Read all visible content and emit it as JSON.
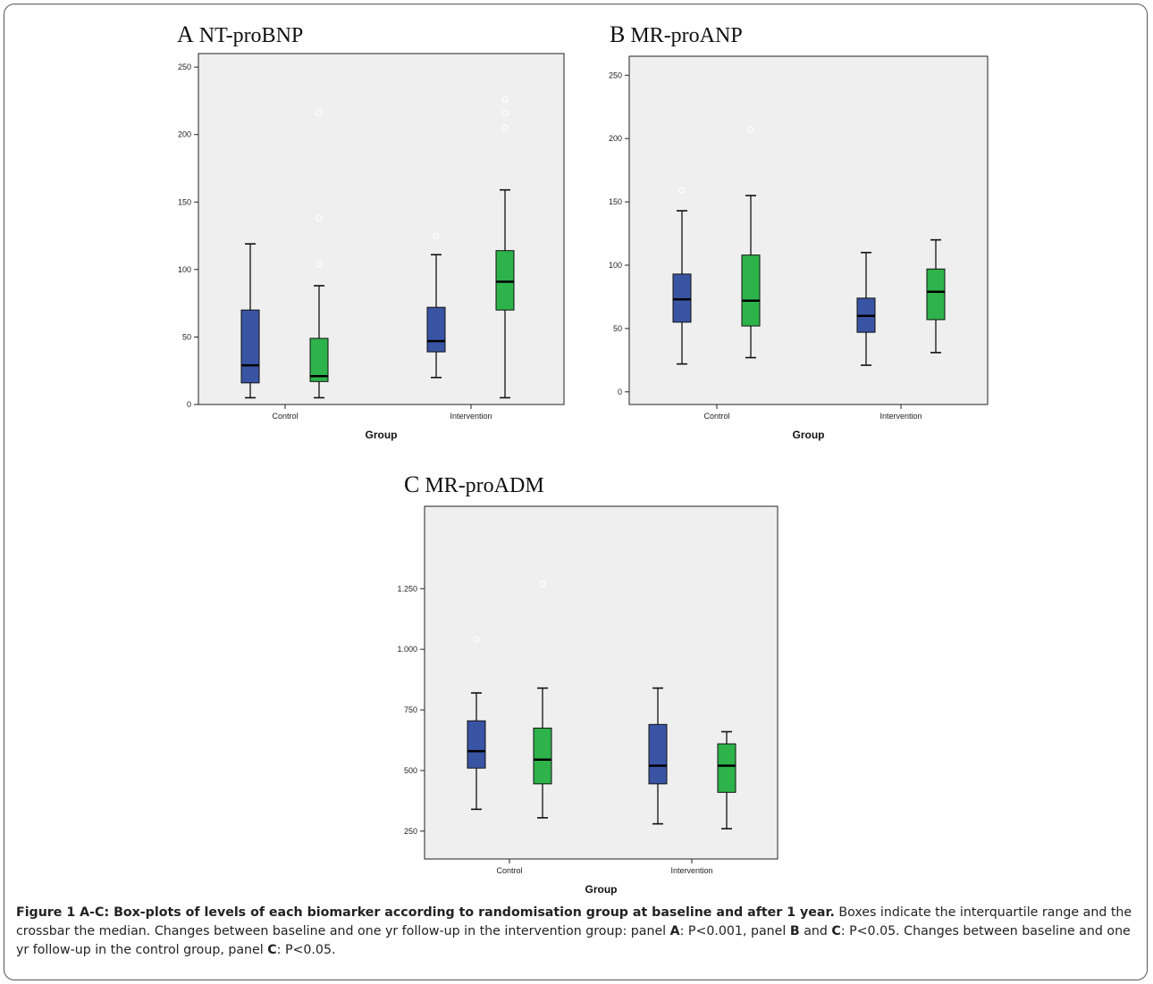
{
  "colors": {
    "baseline": "#3a54a4",
    "followup": "#2db34a",
    "plot_bg": "#efefef"
  },
  "chart_data": [
    {
      "type": "box",
      "panel_letter": "A",
      "title": "NT-proBNP",
      "xlabel": "Group",
      "ylabel": "",
      "categories": [
        "Control",
        "Intervention"
      ],
      "ylim": [
        0,
        260
      ],
      "yticks": [
        0,
        50,
        100,
        150,
        200,
        250
      ],
      "ytick_labels": [
        "0",
        "50",
        "100",
        "150",
        "200",
        "250"
      ],
      "grid": false,
      "boxes": [
        {
          "group": "Control",
          "color": "baseline",
          "min": 5,
          "q1": 16,
          "median": 29,
          "q3": 70,
          "max": 119,
          "outliers": []
        },
        {
          "group": "Control",
          "color": "followup",
          "min": 5,
          "q1": 17,
          "median": 21,
          "q3": 49,
          "max": 88,
          "outliers": [
            104,
            138,
            216
          ]
        },
        {
          "group": "Intervention",
          "color": "baseline",
          "min": 20,
          "q1": 39,
          "median": 47,
          "q3": 72,
          "max": 111,
          "outliers": [
            125
          ]
        },
        {
          "group": "Intervention",
          "color": "followup",
          "min": 5,
          "q1": 70,
          "median": 91,
          "q3": 114,
          "max": 159,
          "outliers": [
            205,
            216,
            226
          ]
        }
      ]
    },
    {
      "type": "box",
      "panel_letter": "B",
      "title": "MR-proANP",
      "xlabel": "Group",
      "ylabel": "",
      "categories": [
        "Control",
        "Intervention"
      ],
      "ylim": [
        -10,
        265
      ],
      "yticks": [
        0,
        50,
        100,
        150,
        200,
        250
      ],
      "ytick_labels": [
        "0",
        "50",
        "100",
        "150",
        "200",
        "250"
      ],
      "grid": false,
      "boxes": [
        {
          "group": "Control",
          "color": "baseline",
          "min": 22,
          "q1": 55,
          "median": 73,
          "q3": 93,
          "max": 143,
          "outliers": [
            159
          ]
        },
        {
          "group": "Control",
          "color": "followup",
          "min": 27,
          "q1": 52,
          "median": 72,
          "q3": 108,
          "max": 155,
          "outliers": [
            207
          ]
        },
        {
          "group": "Intervention",
          "color": "baseline",
          "min": 21,
          "q1": 47,
          "median": 60,
          "q3": 74,
          "max": 110,
          "outliers": []
        },
        {
          "group": "Intervention",
          "color": "followup",
          "min": 31,
          "q1": 57,
          "median": 79,
          "q3": 97,
          "max": 120,
          "outliers": []
        }
      ]
    },
    {
      "type": "box",
      "panel_letter": "C",
      "title": "MR-proADM",
      "xlabel": "Group",
      "ylabel": "",
      "categories": [
        "Control",
        "Intervention"
      ],
      "ylim": [
        135,
        1590
      ],
      "yticks": [
        250,
        500,
        750,
        1000,
        1250
      ],
      "ytick_labels": [
        "250",
        "500",
        "750",
        "1.000",
        "1.250"
      ],
      "grid": false,
      "boxes": [
        {
          "group": "Control",
          "color": "baseline",
          "min": 340,
          "q1": 510,
          "median": 580,
          "q3": 705,
          "max": 820,
          "outliers": [
            1040
          ]
        },
        {
          "group": "Control",
          "color": "followup",
          "min": 305,
          "q1": 445,
          "median": 545,
          "q3": 675,
          "max": 840,
          "outliers": [
            1270
          ]
        },
        {
          "group": "Intervention",
          "color": "baseline",
          "min": 280,
          "q1": 445,
          "median": 520,
          "q3": 690,
          "max": 840,
          "outliers": []
        },
        {
          "group": "Intervention",
          "color": "followup",
          "min": 260,
          "q1": 410,
          "median": 520,
          "q3": 610,
          "max": 660,
          "outliers": []
        }
      ]
    }
  ],
  "caption": {
    "label": "Figure 1 A-C: Box-plots of levels of each biomarker according to randomisation group at baseline and after 1 year.",
    "text_1": " Boxes indicate the interquartile range and the crossbar the median.  Changes between baseline and one yr follow-up in the intervention group: panel ",
    "bold_a": "A",
    "text_2": ": P<0.001, panel ",
    "bold_b": "B",
    "text_3": " and ",
    "bold_c1": "C",
    "text_4": ": P<0.05.  Changes between baseline and one yr follow-up in the control group, panel ",
    "bold_c2": "C",
    "text_5": ": P<0.05."
  }
}
